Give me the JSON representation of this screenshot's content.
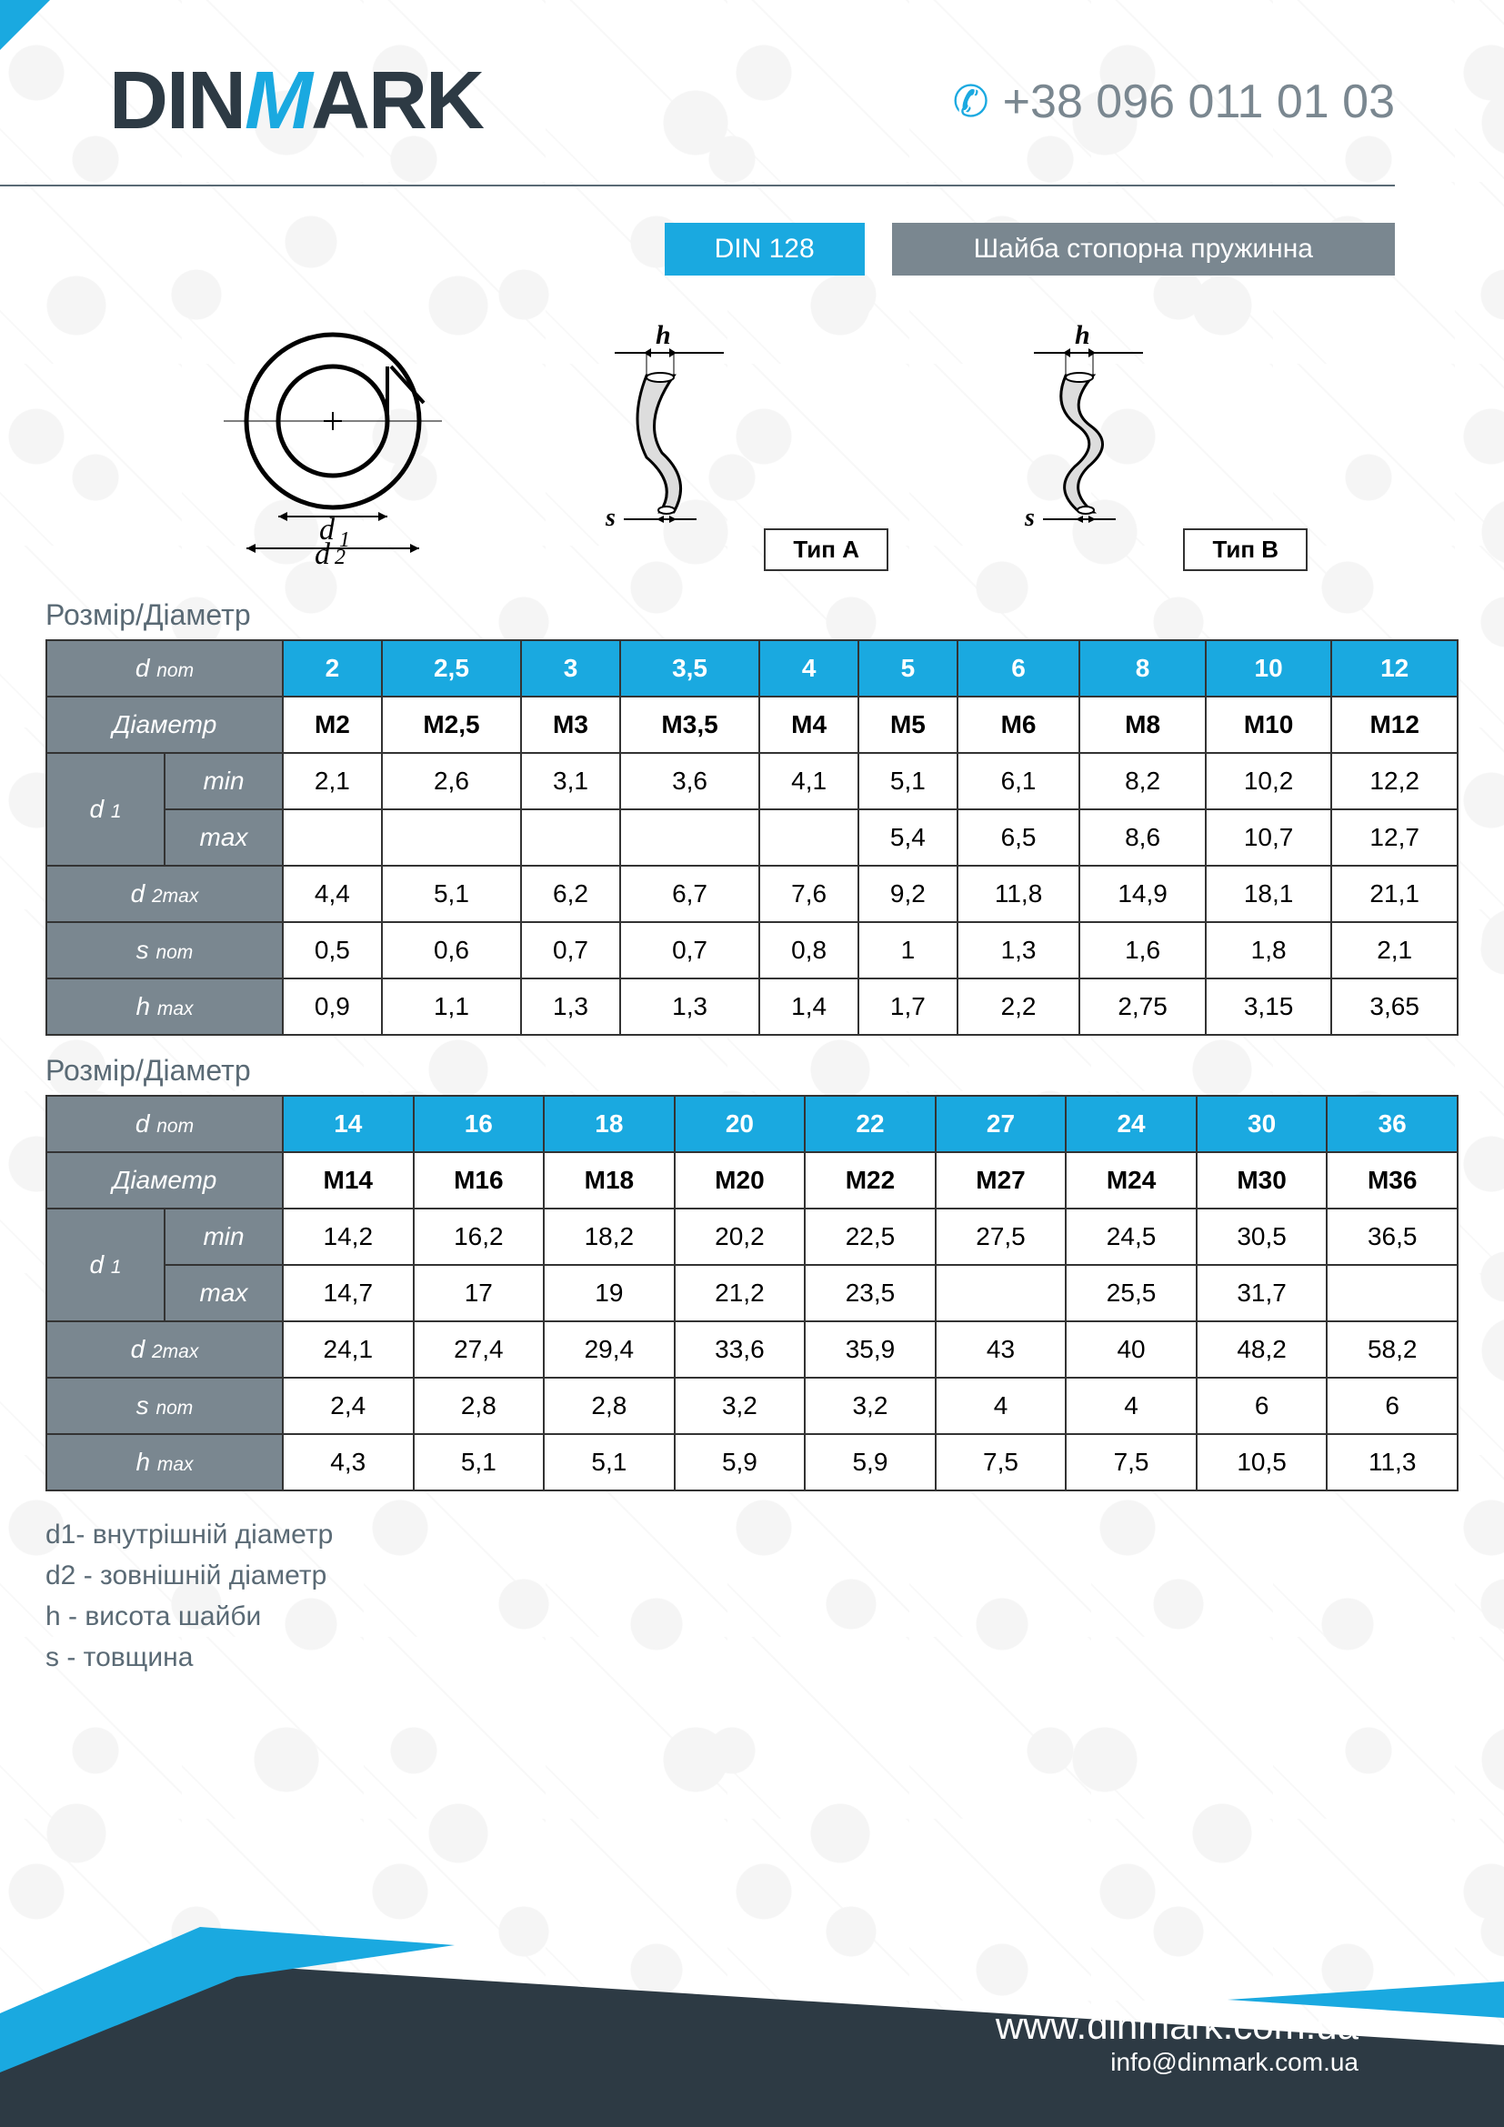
{
  "brand": {
    "part1": "DIN",
    "part2": "M",
    "part3": "ARK"
  },
  "phone": "+38 096 011 01 03",
  "title_code": "DIN 128",
  "title_desc": "Шайба стопорна пружинна",
  "diagram": {
    "d1": "d₁",
    "d2": "d₂",
    "h": "h",
    "s": "s",
    "type_a": "Тип A",
    "type_b": "Тип B"
  },
  "section_label": "Розмір/Діаметр",
  "row_labels": {
    "dnom": "d",
    "dnom_sub": "nom",
    "diameter": "Діаметр",
    "d1": "d",
    "d1_sub": "1",
    "min": "min",
    "max": "max",
    "d2max": "d",
    "d2max_sub": "2max",
    "snom": "s",
    "snom_sub": "nom",
    "hmax": "h",
    "hmax_sub": "max"
  },
  "table1": {
    "dnom": [
      "2",
      "2,5",
      "3",
      "3,5",
      "4",
      "5",
      "6",
      "8",
      "10",
      "12"
    ],
    "diam": [
      "M2",
      "M2,5",
      "M3",
      "M3,5",
      "M4",
      "M5",
      "M6",
      "M8",
      "M10",
      "M12"
    ],
    "d1min": [
      "2,1",
      "2,6",
      "3,1",
      "3,6",
      "4,1",
      "5,1",
      "6,1",
      "8,2",
      "10,2",
      "12,2"
    ],
    "d1max": [
      "",
      "",
      "",
      "",
      "",
      "5,4",
      "6,5",
      "8,6",
      "10,7",
      "12,7"
    ],
    "d2max": [
      "4,4",
      "5,1",
      "6,2",
      "6,7",
      "7,6",
      "9,2",
      "11,8",
      "14,9",
      "18,1",
      "21,1"
    ],
    "snom": [
      "0,5",
      "0,6",
      "0,7",
      "0,7",
      "0,8",
      "1",
      "1,3",
      "1,6",
      "1,8",
      "2,1"
    ],
    "hmax": [
      "0,9",
      "1,1",
      "1,3",
      "1,3",
      "1,4",
      "1,7",
      "2,2",
      "2,75",
      "3,15",
      "3,65"
    ]
  },
  "table2": {
    "dnom": [
      "14",
      "16",
      "18",
      "20",
      "22",
      "27",
      "24",
      "30",
      "36"
    ],
    "diam": [
      "M14",
      "M16",
      "M18",
      "M20",
      "M22",
      "M27",
      "M24",
      "M30",
      "M36"
    ],
    "d1min": [
      "14,2",
      "16,2",
      "18,2",
      "20,2",
      "22,5",
      "27,5",
      "24,5",
      "30,5",
      "36,5"
    ],
    "d1max": [
      "14,7",
      "17",
      "19",
      "21,2",
      "23,5",
      "",
      "25,5",
      "31,7",
      ""
    ],
    "d2max": [
      "24,1",
      "27,4",
      "29,4",
      "33,6",
      "35,9",
      "43",
      "40",
      "48,2",
      "58,2"
    ],
    "snom": [
      "2,4",
      "2,8",
      "2,8",
      "3,2",
      "3,2",
      "4",
      "4",
      "6",
      "6"
    ],
    "hmax": [
      "4,3",
      "5,1",
      "5,1",
      "5,9",
      "5,9",
      "7,5",
      "7,5",
      "10,5",
      "11,3"
    ]
  },
  "legend": [
    "d1- внутрішній діаметр",
    "d2 - зовнішній діаметр",
    "h - висота шайби",
    "s - товщина"
  ],
  "footer": {
    "url": "www.dinmark.com.ua",
    "email": "info@dinmark.com.ua"
  },
  "colors": {
    "blue": "#1aa9e0",
    "gray": "#7a8790",
    "dark": "#2d3a44",
    "border": "#333333",
    "text_gray": "#5a6a75"
  }
}
